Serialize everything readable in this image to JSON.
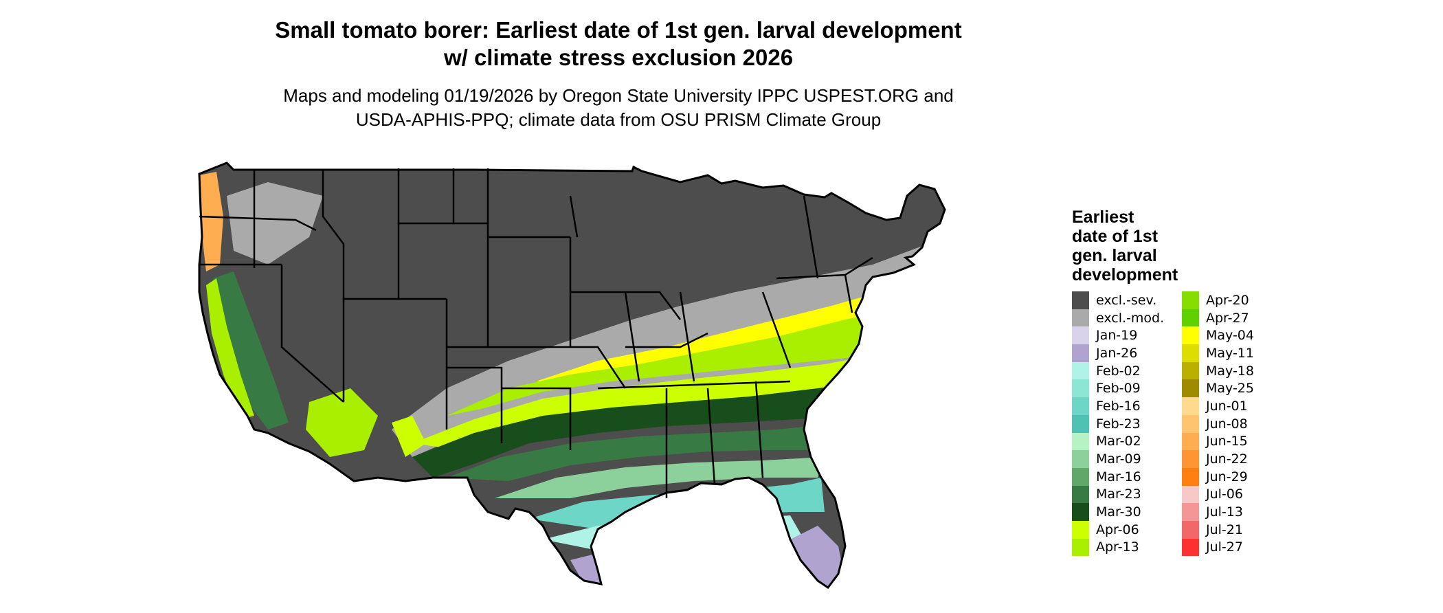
{
  "title_line1": "Small tomato borer: Earliest date of 1st gen. larval development",
  "title_line2": "w/ climate stress exclusion 2026",
  "subtitle_line1": "Maps and modeling 01/19/2026 by Oregon State University IPPC USPEST.ORG and",
  "subtitle_line2": "USDA-APHIS-PPQ; climate data from OSU PRISM Climate Group",
  "legend": {
    "title_lines": [
      "Earliest",
      "date of 1st",
      "gen. larval",
      "development"
    ],
    "items": [
      {
        "label": "excl.-sev.",
        "color": "#4d4d4d"
      },
      {
        "label": "excl.-mod.",
        "color": "#aaaaaa"
      },
      {
        "label": "Jan-19",
        "color": "#d8d3ea"
      },
      {
        "label": "Jan-26",
        "color": "#b0a3cf"
      },
      {
        "label": "Feb-02",
        "color": "#aef3e6"
      },
      {
        "label": "Feb-09",
        "color": "#8de6d3"
      },
      {
        "label": "Feb-16",
        "color": "#6ed6c6"
      },
      {
        "label": "Feb-23",
        "color": "#4fc2b4"
      },
      {
        "label": "Mar-02",
        "color": "#b5f3c2"
      },
      {
        "label": "Mar-09",
        "color": "#8cd19b"
      },
      {
        "label": "Mar-16",
        "color": "#5fa86a"
      },
      {
        "label": "Mar-23",
        "color": "#387a44"
      },
      {
        "label": "Mar-30",
        "color": "#184d1c"
      },
      {
        "label": "Apr-06",
        "color": "#ccff00"
      },
      {
        "label": "Apr-13",
        "color": "#aaee00"
      },
      {
        "label": "Apr-20",
        "color": "#88dd00"
      },
      {
        "label": "Apr-27",
        "color": "#5fd000"
      },
      {
        "label": "May-04",
        "color": "#ffff00"
      },
      {
        "label": "May-11",
        "color": "#dddd00"
      },
      {
        "label": "May-18",
        "color": "#bbb000"
      },
      {
        "label": "May-25",
        "color": "#a08a00"
      },
      {
        "label": "Jun-01",
        "color": "#ffd98e"
      },
      {
        "label": "Jun-08",
        "color": "#ffc470"
      },
      {
        "label": "Jun-15",
        "color": "#ffad50"
      },
      {
        "label": "Jun-22",
        "color": "#ff9632"
      },
      {
        "label": "Jun-29",
        "color": "#ff7f11"
      },
      {
        "label": "Jul-06",
        "color": "#f6c8c8"
      },
      {
        "label": "Jul-13",
        "color": "#f49696"
      },
      {
        "label": "Jul-21",
        "color": "#f26767"
      },
      {
        "label": "Jul-27",
        "color": "#ff3030"
      }
    ]
  }
}
